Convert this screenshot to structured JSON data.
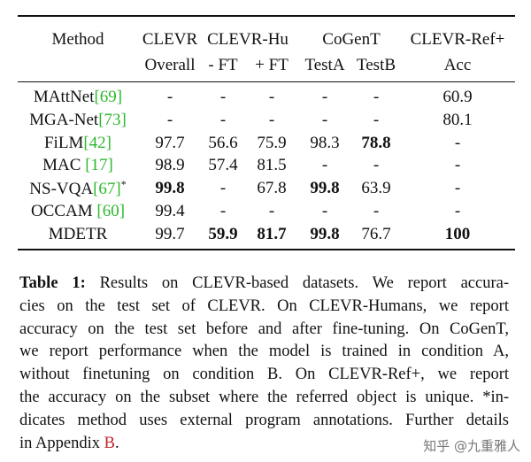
{
  "table": {
    "header": {
      "row1": [
        "Method",
        "CLEVR",
        "CLEVR-Hu",
        "CoGenT",
        "CLEVR-Ref+"
      ],
      "row2": [
        "Overall",
        "- FT",
        "+ FT",
        "TestA",
        "TestB",
        "Acc"
      ]
    },
    "rows": [
      {
        "method": "MAttNet",
        "ref": "[69]",
        "cells": [
          "-",
          "-",
          "-",
          "-",
          "-",
          "60.9"
        ],
        "bold": [
          false,
          false,
          false,
          false,
          false,
          false
        ]
      },
      {
        "method": "MGA-Net",
        "ref": "[73]",
        "cells": [
          "-",
          "-",
          "-",
          "-",
          "-",
          "80.1"
        ],
        "bold": [
          false,
          false,
          false,
          false,
          false,
          false
        ]
      },
      {
        "method": "FiLM",
        "ref": "[42]",
        "cells": [
          "97.7",
          "56.6",
          "75.9",
          "98.3",
          "78.8",
          "-"
        ],
        "bold": [
          false,
          false,
          false,
          false,
          true,
          false
        ]
      },
      {
        "method": "MAC ",
        "ref": "[17]",
        "cells": [
          "98.9",
          "57.4",
          "81.5",
          "-",
          "-",
          "-"
        ],
        "bold": [
          false,
          false,
          false,
          false,
          false,
          false
        ]
      },
      {
        "method": "NS-VQA",
        "ref": "[67]",
        "note": "*",
        "cells": [
          "99.8",
          "-",
          "67.8",
          "99.8",
          "63.9",
          "-"
        ],
        "bold": [
          true,
          false,
          false,
          true,
          false,
          false
        ]
      },
      {
        "method": "OCCAM ",
        "ref": "[60]",
        "cells": [
          "99.4",
          "-",
          "-",
          "-",
          "-",
          "-"
        ],
        "bold": [
          false,
          false,
          false,
          false,
          false,
          false
        ]
      },
      {
        "method": "MDETR",
        "cells": [
          "99.7",
          "59.9",
          "81.7",
          "99.8",
          "76.7",
          "100"
        ],
        "bold": [
          false,
          true,
          true,
          true,
          false,
          true
        ]
      }
    ]
  },
  "caption": {
    "label": "Table 1:",
    "lines": [
      "Results on CLEVR-based datasets. We report accura-",
      "cies on the test set of CLEVR. On CLEVR-Humans, we report",
      "accuracy on the test set before and after fine-tuning. On CoGenT,",
      "we report performance when the model is trained in condition A,",
      "without finetuning on condition B. On CLEVR-Ref+, we report",
      "the accuracy on the subset where the referred object is unique. *in-",
      "dicates method uses external program annotations. Further details"
    ],
    "final": {
      "text": "in Appendix ",
      "link": "B",
      "end": "."
    }
  },
  "watermark": "知乎 @九重雅人"
}
